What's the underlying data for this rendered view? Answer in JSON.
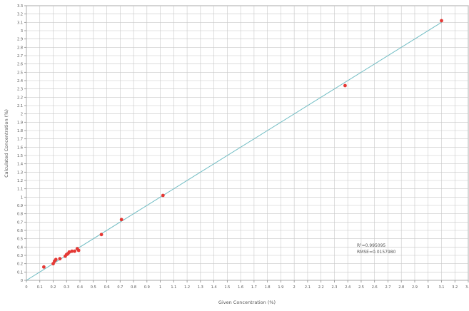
{
  "chart_data": {
    "type": "scatter",
    "title": "",
    "xlabel": "Given Concentration (%)",
    "ylabel": "Calculated Concentration (%)",
    "xlim": [
      0,
      3.3
    ],
    "ylim": [
      0,
      3.3
    ],
    "x_ticks": [
      "0",
      "0.1",
      "0.2",
      "0.3",
      "0.4",
      "0.5",
      "0.6",
      "0.7",
      "0.8",
      "0.9",
      "1",
      "1.1",
      "1.2",
      "1.3",
      "1.4",
      "1.5",
      "1.6",
      "1.7",
      "1.8",
      "1.9",
      "2",
      "2.1",
      "2.2",
      "2.3",
      "2.4",
      "2.5",
      "2.6",
      "2.7",
      "2.8",
      "2.9",
      "3",
      "3.1",
      "3.2",
      "3.3"
    ],
    "y_ticks": [
      "0",
      "0.1",
      "0.2",
      "0.3",
      "0.4",
      "0.5",
      "0.6",
      "0.7",
      "0.8",
      "0.9",
      "1",
      "1.1",
      "1.2",
      "1.3",
      "1.4",
      "1.5",
      "1.6",
      "1.7",
      "1.8",
      "1.9",
      "2",
      "2.1",
      "2.2",
      "2.3",
      "2.4",
      "2.5",
      "2.6",
      "2.7",
      "2.8",
      "2.9",
      "3",
      "3.1",
      "3.2",
      "3.3"
    ],
    "grid": true,
    "points": [
      {
        "x": 0.13,
        "y": 0.16
      },
      {
        "x": 0.2,
        "y": 0.2
      },
      {
        "x": 0.21,
        "y": 0.23
      },
      {
        "x": 0.22,
        "y": 0.25
      },
      {
        "x": 0.25,
        "y": 0.26
      },
      {
        "x": 0.29,
        "y": 0.29
      },
      {
        "x": 0.3,
        "y": 0.31
      },
      {
        "x": 0.31,
        "y": 0.32
      },
      {
        "x": 0.32,
        "y": 0.34
      },
      {
        "x": 0.34,
        "y": 0.35
      },
      {
        "x": 0.36,
        "y": 0.35
      },
      {
        "x": 0.38,
        "y": 0.38
      },
      {
        "x": 0.39,
        "y": 0.36
      },
      {
        "x": 0.56,
        "y": 0.55
      },
      {
        "x": 0.71,
        "y": 0.73
      },
      {
        "x": 1.02,
        "y": 1.02
      },
      {
        "x": 2.38,
        "y": 2.34
      },
      {
        "x": 3.1,
        "y": 3.12
      }
    ],
    "fit_line": {
      "x": [
        0,
        3.1
      ],
      "y": [
        0,
        3.1
      ]
    },
    "annotations": [
      "R²=0.995095",
      "RMSE=0.0157980"
    ],
    "colors": {
      "points": "#e53935",
      "fit_line": "#6fbcc3",
      "grid": "#c8c8c8",
      "axis": "#888888"
    }
  }
}
